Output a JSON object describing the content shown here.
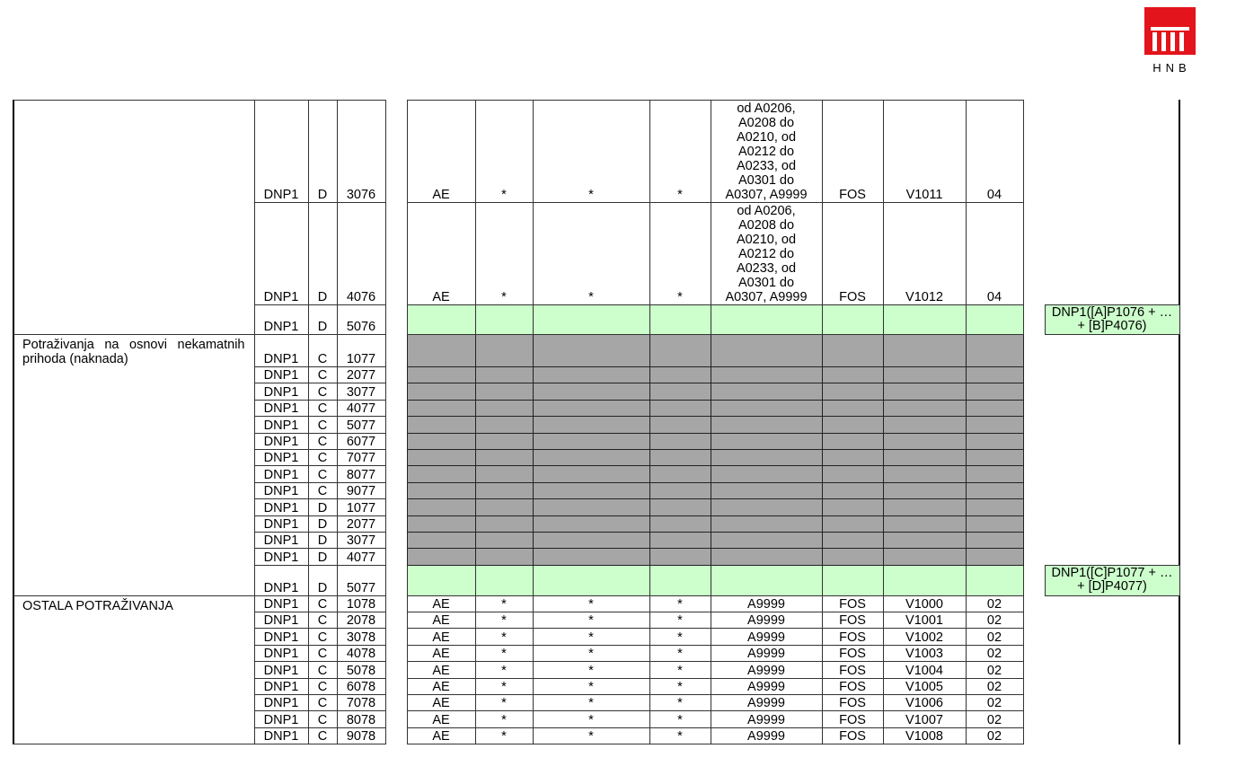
{
  "logo": {
    "text": "HNB",
    "color": "#e3141b"
  },
  "colors": {
    "green": "#ccffcc",
    "gray": "#a6a6a6"
  },
  "sections": [
    {
      "description": "",
      "rows": [
        {
          "report": "DNP1",
          "side": "D",
          "position": "3076",
          "ae": "AE",
          "s1": "*",
          "s2": "*",
          "s3": "*",
          "code": "od A0206,\nA0208 do\nA0210, od\nA0212 do\nA0233, od\nA0301 do\nA0307, A9999",
          "fos": "FOS",
          "v": "V1011",
          "n": "04",
          "fill": "",
          "formula": ""
        },
        {
          "report": "DNP1",
          "side": "D",
          "position": "4076",
          "ae": "AE",
          "s1": "*",
          "s2": "*",
          "s3": "*",
          "code": "od A0206,\nA0208 do\nA0210, od\nA0212 do\nA0233, od\nA0301 do\nA0307, A9999",
          "fos": "FOS",
          "v": "V1012",
          "n": "04",
          "fill": "",
          "formula": ""
        },
        {
          "report": "DNP1",
          "side": "D",
          "position": "5076",
          "fill": "green",
          "formula": "DNP1([A]P1076 + … + [B]P4076)"
        }
      ]
    },
    {
      "description": "Potraživanja na osnovi nekamatnih prihoda (naknada)",
      "rows": [
        {
          "report": "DNP1",
          "side": "C",
          "position": "1077",
          "fill": "gray"
        },
        {
          "report": "DNP1",
          "side": "C",
          "position": "2077",
          "fill": "gray"
        },
        {
          "report": "DNP1",
          "side": "C",
          "position": "3077",
          "fill": "gray"
        },
        {
          "report": "DNP1",
          "side": "C",
          "position": "4077",
          "fill": "gray"
        },
        {
          "report": "DNP1",
          "side": "C",
          "position": "5077",
          "fill": "gray"
        },
        {
          "report": "DNP1",
          "side": "C",
          "position": "6077",
          "fill": "gray"
        },
        {
          "report": "DNP1",
          "side": "C",
          "position": "7077",
          "fill": "gray"
        },
        {
          "report": "DNP1",
          "side": "C",
          "position": "8077",
          "fill": "gray"
        },
        {
          "report": "DNP1",
          "side": "C",
          "position": "9077",
          "fill": "gray"
        },
        {
          "report": "DNP1",
          "side": "D",
          "position": "1077",
          "fill": "gray"
        },
        {
          "report": "DNP1",
          "side": "D",
          "position": "2077",
          "fill": "gray"
        },
        {
          "report": "DNP1",
          "side": "D",
          "position": "3077",
          "fill": "gray"
        },
        {
          "report": "DNP1",
          "side": "D",
          "position": "4077",
          "fill": "gray"
        },
        {
          "report": "DNP1",
          "side": "D",
          "position": "5077",
          "fill": "green",
          "formula": "DNP1([C]P1077 + … + [D]P4077)"
        }
      ]
    },
    {
      "description": "OSTALA POTRAŽIVANJA",
      "rows": [
        {
          "report": "DNP1",
          "side": "C",
          "position": "1078",
          "ae": "AE",
          "s1": "*",
          "s2": "*",
          "s3": "*",
          "code": "A9999",
          "fos": "FOS",
          "v": "V1000",
          "n": "02",
          "fill": ""
        },
        {
          "report": "DNP1",
          "side": "C",
          "position": "2078",
          "ae": "AE",
          "s1": "*",
          "s2": "*",
          "s3": "*",
          "code": "A9999",
          "fos": "FOS",
          "v": "V1001",
          "n": "02",
          "fill": ""
        },
        {
          "report": "DNP1",
          "side": "C",
          "position": "3078",
          "ae": "AE",
          "s1": "*",
          "s2": "*",
          "s3": "*",
          "code": "A9999",
          "fos": "FOS",
          "v": "V1002",
          "n": "02",
          "fill": ""
        },
        {
          "report": "DNP1",
          "side": "C",
          "position": "4078",
          "ae": "AE",
          "s1": "*",
          "s2": "*",
          "s3": "*",
          "code": "A9999",
          "fos": "FOS",
          "v": "V1003",
          "n": "02",
          "fill": ""
        },
        {
          "report": "DNP1",
          "side": "C",
          "position": "5078",
          "ae": "AE",
          "s1": "*",
          "s2": "*",
          "s3": "*",
          "code": "A9999",
          "fos": "FOS",
          "v": "V1004",
          "n": "02",
          "fill": ""
        },
        {
          "report": "DNP1",
          "side": "C",
          "position": "6078",
          "ae": "AE",
          "s1": "*",
          "s2": "*",
          "s3": "*",
          "code": "A9999",
          "fos": "FOS",
          "v": "V1005",
          "n": "02",
          "fill": ""
        },
        {
          "report": "DNP1",
          "side": "C",
          "position": "7078",
          "ae": "AE",
          "s1": "*",
          "s2": "*",
          "s3": "*",
          "code": "A9999",
          "fos": "FOS",
          "v": "V1006",
          "n": "02",
          "fill": ""
        },
        {
          "report": "DNP1",
          "side": "C",
          "position": "8078",
          "ae": "AE",
          "s1": "*",
          "s2": "*",
          "s3": "*",
          "code": "A9999",
          "fos": "FOS",
          "v": "V1007",
          "n": "02",
          "fill": ""
        },
        {
          "report": "DNP1",
          "side": "C",
          "position": "9078",
          "ae": "AE",
          "s1": "*",
          "s2": "*",
          "s3": "*",
          "code": "A9999",
          "fos": "FOS",
          "v": "V1008",
          "n": "02",
          "fill": ""
        }
      ]
    }
  ]
}
